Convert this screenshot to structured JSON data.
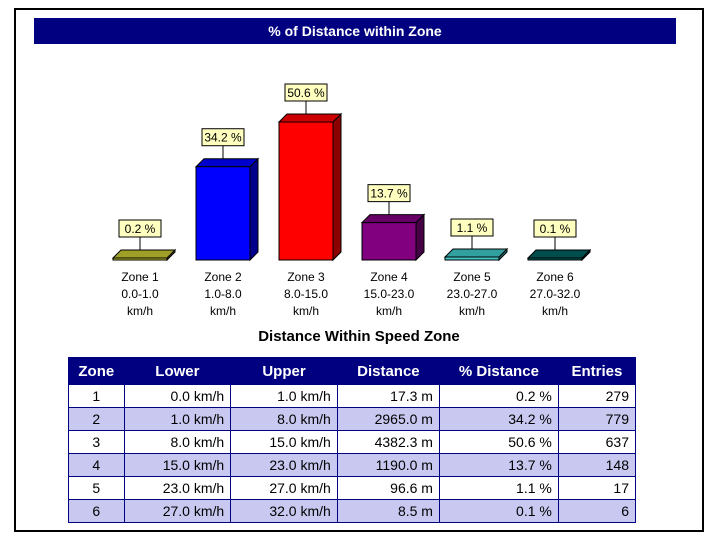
{
  "chart_data": {
    "type": "bar",
    "title": "% of Distance within Zone",
    "categories": [
      {
        "name": "Zone 1",
        "range": "0.0-1.0",
        "unit": "km/h"
      },
      {
        "name": "Zone 2",
        "range": "1.0-8.0",
        "unit": "km/h"
      },
      {
        "name": "Zone 3",
        "range": "8.0-15.0",
        "unit": "km/h"
      },
      {
        "name": "Zone 4",
        "range": "15.0-23.0",
        "unit": "km/h"
      },
      {
        "name": "Zone 5",
        "range": "23.0-27.0",
        "unit": "km/h"
      },
      {
        "name": "Zone 6",
        "range": "27.0-32.0",
        "unit": "km/h"
      }
    ],
    "values": [
      0.2,
      34.2,
      50.6,
      13.7,
      1.1,
      0.1
    ],
    "value_labels": [
      "0.2 %",
      "34.2 %",
      "50.6 %",
      "13.7 %",
      "1.1 %",
      "0.1 %"
    ],
    "colors": [
      "#c8c832",
      "#0000ff",
      "#ff0000",
      "#800080",
      "#40c8c8",
      "#006060"
    ],
    "ylim": [
      0,
      55
    ],
    "grid": false,
    "legend": "none"
  },
  "table": {
    "title": "Distance Within Speed Zone",
    "headers": [
      "Zone",
      "Lower",
      "Upper",
      "Distance",
      "% Distance",
      "Entries"
    ],
    "rows": [
      [
        "1",
        "0.0 km/h",
        "1.0 km/h",
        "17.3 m",
        "0.2 %",
        "279"
      ],
      [
        "2",
        "1.0 km/h",
        "8.0 km/h",
        "2965.0 m",
        "34.2 %",
        "779"
      ],
      [
        "3",
        "8.0 km/h",
        "15.0 km/h",
        "4382.3 m",
        "50.6 %",
        "637"
      ],
      [
        "4",
        "15.0 km/h",
        "23.0 km/h",
        "1190.0 m",
        "13.7 %",
        "148"
      ],
      [
        "5",
        "23.0 km/h",
        "27.0 km/h",
        "96.6 m",
        "1.1 %",
        "17"
      ],
      [
        "6",
        "27.0 km/h",
        "32.0 km/h",
        "8.5 m",
        "0.1 %",
        "6"
      ]
    ]
  }
}
